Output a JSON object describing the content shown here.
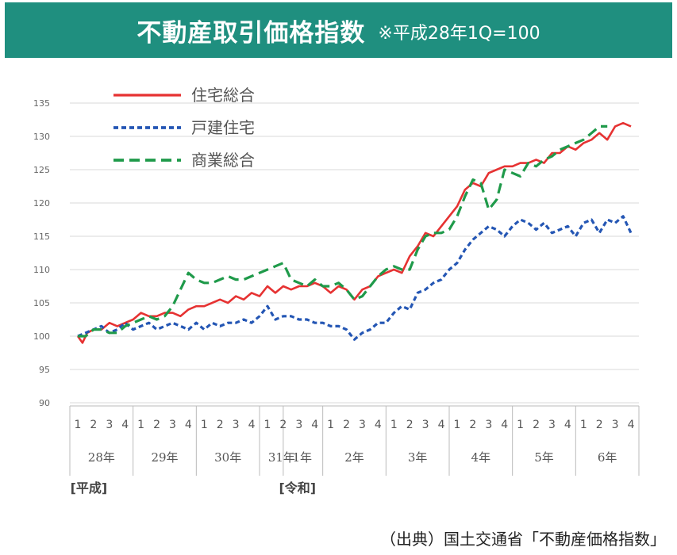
{
  "header": {
    "title": "不動産取引価格指数",
    "note": "※平成28年1Q=100",
    "bg_color": "#1f8f7f"
  },
  "source": "（出典）国土交通省「不動産価格指数」",
  "chart_data": {
    "type": "line",
    "ylim": [
      90,
      135
    ],
    "yticks": [
      135,
      130,
      125,
      120,
      115,
      110,
      105,
      100,
      95,
      90
    ],
    "grid": true,
    "legend": {
      "position": "top-left"
    },
    "quarter_labels": [
      "1",
      "2",
      "3",
      "4",
      "1",
      "2",
      "3",
      "4",
      "1",
      "2",
      "3",
      "4",
      "1",
      "2",
      "3",
      "4",
      "1",
      "2",
      "3",
      "4",
      "1",
      "2",
      "3",
      "4",
      "1",
      "2",
      "3",
      "4",
      "1",
      "2",
      "3",
      "4",
      "1",
      "2",
      "3",
      "4"
    ],
    "year_labels": [
      {
        "label": "28年",
        "index": 1.5
      },
      {
        "label": "29年",
        "index": 5.5
      },
      {
        "label": "30年",
        "index": 9.5
      },
      {
        "label": "31年",
        "index": 12.9
      },
      {
        "label": "1年",
        "index": 14.2
      },
      {
        "label": "2年",
        "index": 17.5
      },
      {
        "label": "3年",
        "index": 21.5
      },
      {
        "label": "4年",
        "index": 25.5
      },
      {
        "label": "5年",
        "index": 29.5
      },
      {
        "label": "6年",
        "index": 33.5
      }
    ],
    "eras": [
      {
        "label": "[平成]",
        "index": 1.0
      },
      {
        "label": "[令和]",
        "index": 14.2
      }
    ],
    "series": [
      {
        "name": "住宅総合",
        "color": "#e63232",
        "style": "solid",
        "x": [
          0,
          0.3,
          0.6,
          1,
          1.5,
          2,
          2.5,
          3,
          3.5,
          4,
          4.5,
          5,
          5.5,
          6,
          6.5,
          7,
          7.5,
          8,
          8.5,
          9,
          9.5,
          10,
          10.5,
          11,
          11.5,
          12,
          12.5,
          13,
          13.5,
          14,
          14.5,
          15,
          15.5,
          16,
          16.5,
          17,
          17.5,
          18,
          18.5,
          19,
          19.5,
          20,
          20.5,
          21,
          21.5,
          22,
          22.5,
          23,
          23.5,
          24,
          24.5,
          25,
          25.5,
          26,
          26.5,
          27,
          27.5,
          28,
          28.5,
          29,
          29.5,
          30,
          30.5,
          31,
          31.5,
          32,
          32.5,
          33,
          33.5,
          34,
          34.5,
          35
        ],
        "values": [
          100,
          99,
          100.5,
          101,
          101,
          102,
          101.5,
          102,
          102.5,
          103.5,
          103,
          103,
          103.5,
          103.5,
          103,
          104,
          104.5,
          104.5,
          105,
          105.5,
          105,
          106,
          105.5,
          106.5,
          106,
          107.5,
          106.5,
          107.5,
          107,
          107.5,
          107.5,
          108,
          107.5,
          106.5,
          107.5,
          107,
          105.5,
          107,
          107.5,
          109,
          109.5,
          110,
          109.5,
          112,
          113.5,
          115.5,
          115,
          116.5,
          118,
          119.5,
          122,
          123,
          122.5,
          124.5,
          125,
          125.5,
          125.5,
          126,
          126,
          126.5,
          126,
          127.5,
          127.5,
          128.5,
          128,
          129,
          129.5,
          130.5,
          129.5,
          131.5,
          132,
          131.5
        ]
      },
      {
        "name": "戸建住宅",
        "color": "#2456b4",
        "style": "dotted",
        "x": [
          0,
          0.5,
          1,
          1.5,
          2,
          2.5,
          3,
          3.5,
          4,
          4.5,
          5,
          5.5,
          6,
          6.5,
          7,
          7.5,
          8,
          8.5,
          9,
          9.5,
          10,
          10.5,
          11,
          11.5,
          12,
          12.5,
          13,
          13.5,
          14,
          14.5,
          15,
          15.5,
          16,
          16.5,
          17,
          17.5,
          18,
          18.5,
          19,
          19.5,
          20,
          20.5,
          21,
          21.5,
          22,
          22.5,
          23,
          23.5,
          24,
          24.5,
          25,
          25.5,
          26,
          26.5,
          27,
          27.5,
          28,
          28.5,
          29,
          29.5,
          30,
          30.5,
          31,
          31.5,
          32,
          32.5,
          33,
          33.5,
          34,
          34.5,
          35
        ],
        "values": [
          100,
          100.5,
          101,
          101.5,
          100.5,
          101,
          102,
          101,
          101.5,
          102,
          101,
          101.5,
          102,
          101.5,
          101,
          102,
          101,
          102,
          101.5,
          102,
          102,
          102.5,
          102,
          103,
          104.5,
          102.5,
          103,
          103,
          102.5,
          102.5,
          102,
          102,
          101.5,
          101.5,
          101,
          99.5,
          100.5,
          101,
          102,
          102,
          103.5,
          104.5,
          104,
          106.5,
          107,
          108,
          108.5,
          110,
          111,
          113,
          114.5,
          115.5,
          116.5,
          116,
          115,
          116.5,
          117.5,
          117,
          116,
          117,
          115.5,
          116,
          116.5,
          115,
          117,
          117.5,
          115.5,
          117.5,
          117,
          118,
          115.5
        ]
      },
      {
        "name": "商業総合",
        "color": "#1f9a4a",
        "style": "dashed",
        "x": [
          0,
          0.5,
          1,
          1.5,
          2,
          2.5,
          3,
          3.5,
          4,
          4.5,
          5,
          5.5,
          6,
          6.5,
          7,
          7.5,
          8,
          8.5,
          9,
          9.5,
          10,
          10.5,
          11,
          11.5,
          12,
          12.5,
          13,
          13.5,
          14,
          14.5,
          15,
          15.5,
          16,
          16.5,
          17,
          17.5,
          18,
          18.5,
          19,
          19.5,
          20,
          20.5,
          21,
          21.5,
          22,
          22.5,
          23,
          23.5,
          24,
          24.5,
          25,
          25.5,
          26,
          26.5,
          27,
          27.5,
          28,
          28.5,
          29,
          29.5,
          30,
          30.5,
          31,
          31.5,
          32,
          32.5,
          33,
          33.5
        ],
        "values": [
          100,
          100,
          101,
          101,
          100.5,
          100.5,
          101.5,
          102,
          102.5,
          103,
          102.5,
          103,
          104.5,
          107,
          109.5,
          108.5,
          108,
          108,
          108.5,
          109,
          108.5,
          108.5,
          109,
          109.5,
          110,
          110.5,
          111,
          108.5,
          108,
          107.5,
          108.5,
          107.5,
          107.5,
          108,
          107,
          105.5,
          106,
          107.5,
          109,
          110,
          110.5,
          110,
          110,
          113,
          115,
          115.5,
          115.5,
          116,
          118,
          121,
          123.5,
          123,
          119,
          120.5,
          125,
          124.5,
          124,
          126,
          125.5,
          126.5,
          127,
          128,
          128.5,
          129,
          129.5,
          130.5,
          131.5,
          131.5
        ]
      }
    ]
  }
}
